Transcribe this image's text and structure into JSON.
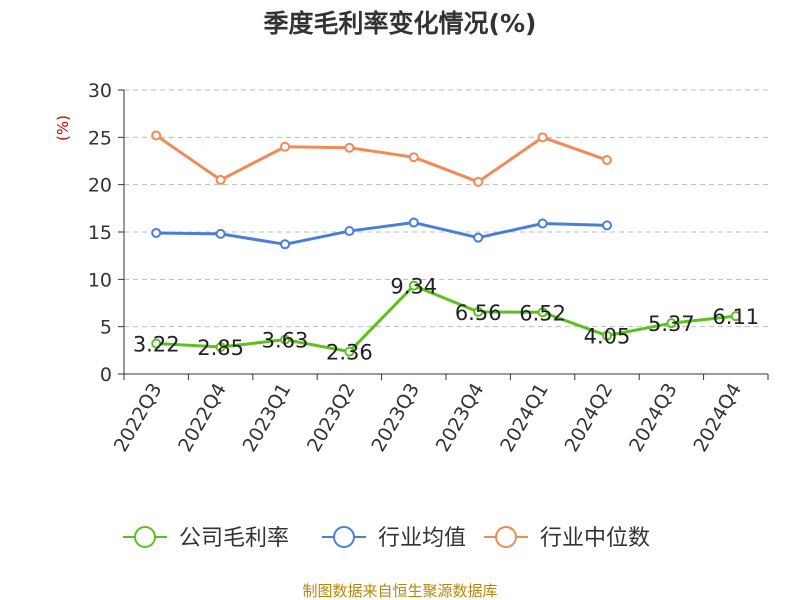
{
  "chart_data": {
    "type": "line",
    "title": "季度毛利率变化情况(%)",
    "ylabel": "(%)",
    "ylim": [
      0,
      30
    ],
    "yticks": [
      0,
      5,
      10,
      15,
      20,
      25,
      30
    ],
    "grid": "horizontal-dashed",
    "legend_position": "bottom",
    "categories": [
      "2022Q3",
      "2022Q4",
      "2023Q1",
      "2023Q2",
      "2023Q3",
      "2023Q4",
      "2024Q1",
      "2024Q2",
      "2024Q3",
      "2024Q4"
    ],
    "series": [
      {
        "name": "公司毛利率",
        "color": "#5cc11f",
        "values": [
          3.22,
          2.85,
          3.63,
          2.36,
          9.34,
          6.56,
          6.52,
          4.05,
          5.37,
          6.11
        ],
        "labels": [
          "3.22",
          "2.85",
          "3.63",
          "2.36",
          "9.34",
          "6.56",
          "6.52",
          "4.05",
          "5.37",
          "6.11"
        ]
      },
      {
        "name": "行业均值",
        "color": "#4a7fd8",
        "values": [
          14.9,
          14.8,
          13.7,
          15.1,
          16.0,
          14.4,
          15.9,
          15.7,
          null,
          null
        ]
      },
      {
        "name": "行业中位数",
        "color": "#f28a56",
        "values": [
          25.2,
          20.5,
          24.0,
          23.9,
          22.9,
          20.3,
          25.0,
          22.6,
          null,
          null
        ]
      }
    ],
    "source": "制图数据来自恒生聚源数据库"
  }
}
